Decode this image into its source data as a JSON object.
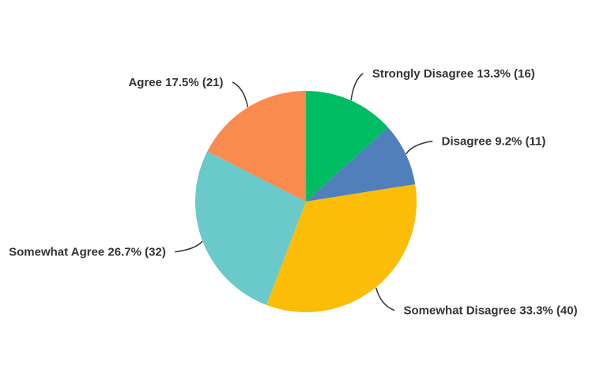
{
  "chart_data": {
    "type": "pie",
    "title": "",
    "start_angle_deg": 0,
    "direction": "clockwise",
    "background": "#FFFFFF",
    "label_color": "#333333",
    "leader_line_color": "#333333",
    "slices": [
      {
        "label": "Strongly Disagree",
        "percent": 13.3,
        "count": 16,
        "display": "Strongly Disagree 13.3% (16)",
        "color": "#00BC62"
      },
      {
        "label": "Disagree",
        "percent": 9.2,
        "count": 11,
        "display": "Disagree 9.2% (11)",
        "color": "#507FBC"
      },
      {
        "label": "Somewhat Disagree",
        "percent": 33.3,
        "count": 40,
        "display": "Somewhat Disagree 33.3% (40)",
        "color": "#FBBD08"
      },
      {
        "label": "Somewhat Agree",
        "percent": 26.7,
        "count": 32,
        "display": "Somewhat Agree 26.7% (32)",
        "color": "#6AC9CB"
      },
      {
        "label": "Agree",
        "percent": 17.5,
        "count": 21,
        "display": "Agree 17.5% (21)",
        "color": "#F98B4E"
      }
    ]
  }
}
